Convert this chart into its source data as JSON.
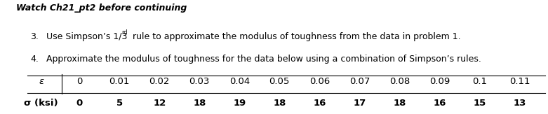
{
  "watch_text": "Watch Ch21_pt2 before continuing",
  "item3_pre": "Use Simpson’s 1/3",
  "item3_super": "rd",
  "item3_post": " rule to approximate the modulus of toughness from the data in problem 1.",
  "item4": "Approximate the modulus of toughness for the data below using a combination of Simpson’s rules.",
  "epsilon_label": "ε",
  "sigma_label": "σ (ksi)",
  "epsilon_values": [
    "0",
    "0.01",
    "0.02",
    "0.03",
    "0.04",
    "0.05",
    "0.06",
    "0.07",
    "0.08",
    "0.09",
    "0.1",
    "0.11"
  ],
  "sigma_values": [
    "0",
    "5",
    "12",
    "18",
    "19",
    "18",
    "16",
    "17",
    "18",
    "16",
    "15",
    "13"
  ],
  "background_color": "#ffffff",
  "text_color": "#000000",
  "font_size_watch": 9.0,
  "font_size_items": 9.0,
  "font_size_table": 9.5
}
